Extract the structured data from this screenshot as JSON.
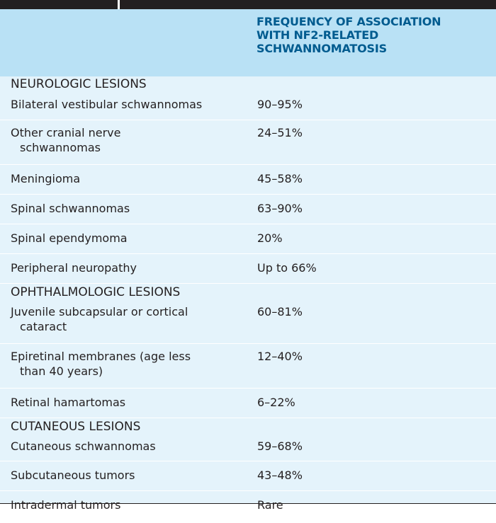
{
  "header": {
    "col2_line1": "FREQUENCY OF ASSOCIATION",
    "col2_line2": "WITH NF2-RELATED",
    "col2_line3": "SCHWANNOMATOSIS"
  },
  "sections": [
    {
      "title": "NEUROLOGIC LESIONS",
      "rows": [
        {
          "lesion": "Bilateral vestibular schwannomas",
          "freq": "90–95%"
        },
        {
          "lesion_line1": "Other cranial nerve",
          "lesion_line2": "schwannomas",
          "freq": "24–51%"
        },
        {
          "lesion": "Meningioma",
          "freq": "45–58%"
        },
        {
          "lesion": "Spinal schwannomas",
          "freq": "63–90%"
        },
        {
          "lesion": "Spinal ependymoma",
          "freq": "20%"
        },
        {
          "lesion": "Peripheral neuropathy",
          "freq": "Up to 66%"
        }
      ]
    },
    {
      "title": "OPHTHALMOLOGIC LESIONS",
      "rows": [
        {
          "lesion_line1": "Juvenile subcapsular or cortical",
          "lesion_line2": "cataract",
          "freq": "60–81%"
        },
        {
          "lesion_line1": "Epiretinal membranes (age less",
          "lesion_line2": "than 40 years)",
          "freq": "12–40%"
        },
        {
          "lesion": "Retinal hamartomas",
          "freq": "6–22%"
        }
      ]
    },
    {
      "title": "CUTANEOUS LESIONS",
      "rows": [
        {
          "lesion": "Cutaneous schwannomas",
          "freq": "59–68%"
        },
        {
          "lesion": "Subcutaneous tumors",
          "freq": "43–48%"
        },
        {
          "lesion": "Intradermal tumors",
          "freq": "Rare"
        }
      ]
    }
  ]
}
